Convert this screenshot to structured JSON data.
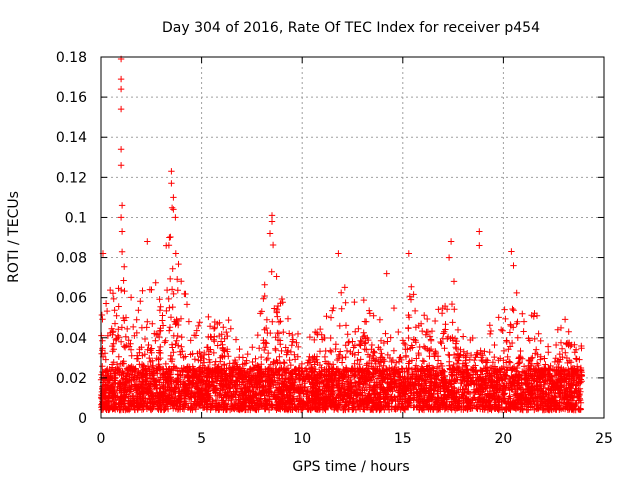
{
  "chart_data": {
    "type": "scatter",
    "title": "Day 304 of 2016, Rate Of TEC Index for receiver p454",
    "xlabel": "GPS time / hours",
    "ylabel": "ROTI / TECUs",
    "xlim": [
      0,
      25
    ],
    "ylim": [
      0,
      0.18
    ],
    "x_ticks": [
      0,
      5,
      10,
      15,
      20,
      25
    ],
    "y_ticks": [
      0,
      0.02,
      0.04,
      0.06,
      0.08,
      0.1,
      0.12,
      0.14,
      0.16,
      0.18
    ],
    "x_tick_labels": [
      "0",
      "5",
      "10",
      "15",
      "20",
      "25"
    ],
    "y_tick_labels": [
      "0",
      "0.02",
      "0.04",
      "0.06",
      "0.08",
      "0.1",
      "0.12",
      "0.14",
      "0.16",
      "0.18"
    ],
    "grid": true,
    "marker": "+",
    "color": "#ff0000",
    "data_x_range": [
      0,
      23.9
    ],
    "baseline_range": [
      0.004,
      0.025
    ],
    "notable_points": [
      {
        "x": 1.0,
        "y": 0.179
      },
      {
        "x": 1.0,
        "y": 0.169
      },
      {
        "x": 1.0,
        "y": 0.164
      },
      {
        "x": 1.0,
        "y": 0.154
      },
      {
        "x": 1.0,
        "y": 0.134
      },
      {
        "x": 1.0,
        "y": 0.126
      },
      {
        "x": 1.05,
        "y": 0.106
      },
      {
        "x": 1.0,
        "y": 0.1
      },
      {
        "x": 1.05,
        "y": 0.093
      },
      {
        "x": 0.1,
        "y": 0.082
      },
      {
        "x": 3.5,
        "y": 0.123
      },
      {
        "x": 3.5,
        "y": 0.117
      },
      {
        "x": 3.6,
        "y": 0.11
      },
      {
        "x": 3.6,
        "y": 0.104
      },
      {
        "x": 3.7,
        "y": 0.1
      },
      {
        "x": 3.4,
        "y": 0.09
      },
      {
        "x": 8.5,
        "y": 0.101
      },
      {
        "x": 8.5,
        "y": 0.098
      },
      {
        "x": 8.4,
        "y": 0.092
      },
      {
        "x": 17.4,
        "y": 0.088
      },
      {
        "x": 17.3,
        "y": 0.08
      },
      {
        "x": 18.8,
        "y": 0.093
      },
      {
        "x": 18.8,
        "y": 0.086
      },
      {
        "x": 20.4,
        "y": 0.083
      },
      {
        "x": 20.5,
        "y": 0.076
      },
      {
        "x": 2.3,
        "y": 0.088
      },
      {
        "x": 11.8,
        "y": 0.082
      },
      {
        "x": 14.2,
        "y": 0.072
      },
      {
        "x": 15.3,
        "y": 0.082
      }
    ],
    "activity_envelope": [
      {
        "x": 0.0,
        "y": 0.055
      },
      {
        "x": 0.5,
        "y": 0.065
      },
      {
        "x": 1.0,
        "y": 0.09
      },
      {
        "x": 1.5,
        "y": 0.06
      },
      {
        "x": 2.0,
        "y": 0.065
      },
      {
        "x": 2.5,
        "y": 0.07
      },
      {
        "x": 3.0,
        "y": 0.065
      },
      {
        "x": 3.5,
        "y": 0.11
      },
      {
        "x": 4.0,
        "y": 0.07
      },
      {
        "x": 4.5,
        "y": 0.06
      },
      {
        "x": 5.0,
        "y": 0.045
      },
      {
        "x": 5.5,
        "y": 0.06
      },
      {
        "x": 6.0,
        "y": 0.05
      },
      {
        "x": 6.5,
        "y": 0.05
      },
      {
        "x": 7.0,
        "y": 0.03
      },
      {
        "x": 7.5,
        "y": 0.035
      },
      {
        "x": 8.0,
        "y": 0.06
      },
      {
        "x": 8.5,
        "y": 0.09
      },
      {
        "x": 9.0,
        "y": 0.065
      },
      {
        "x": 9.5,
        "y": 0.05
      },
      {
        "x": 10.0,
        "y": 0.04
      },
      {
        "x": 10.5,
        "y": 0.045
      },
      {
        "x": 11.0,
        "y": 0.05
      },
      {
        "x": 11.5,
        "y": 0.055
      },
      {
        "x": 12.0,
        "y": 0.07
      },
      {
        "x": 12.5,
        "y": 0.065
      },
      {
        "x": 13.0,
        "y": 0.06
      },
      {
        "x": 13.5,
        "y": 0.055
      },
      {
        "x": 14.0,
        "y": 0.05
      },
      {
        "x": 14.5,
        "y": 0.06
      },
      {
        "x": 15.0,
        "y": 0.045
      },
      {
        "x": 15.5,
        "y": 0.07
      },
      {
        "x": 16.0,
        "y": 0.055
      },
      {
        "x": 16.5,
        "y": 0.05
      },
      {
        "x": 17.0,
        "y": 0.06
      },
      {
        "x": 17.5,
        "y": 0.075
      },
      {
        "x": 18.0,
        "y": 0.05
      },
      {
        "x": 18.5,
        "y": 0.045
      },
      {
        "x": 19.0,
        "y": 0.05
      },
      {
        "x": 19.5,
        "y": 0.045
      },
      {
        "x": 20.0,
        "y": 0.055
      },
      {
        "x": 20.5,
        "y": 0.075
      },
      {
        "x": 21.0,
        "y": 0.05
      },
      {
        "x": 21.5,
        "y": 0.06
      },
      {
        "x": 22.0,
        "y": 0.045
      },
      {
        "x": 22.5,
        "y": 0.04
      },
      {
        "x": 23.0,
        "y": 0.055
      },
      {
        "x": 23.5,
        "y": 0.055
      },
      {
        "x": 23.9,
        "y": 0.04
      }
    ]
  }
}
